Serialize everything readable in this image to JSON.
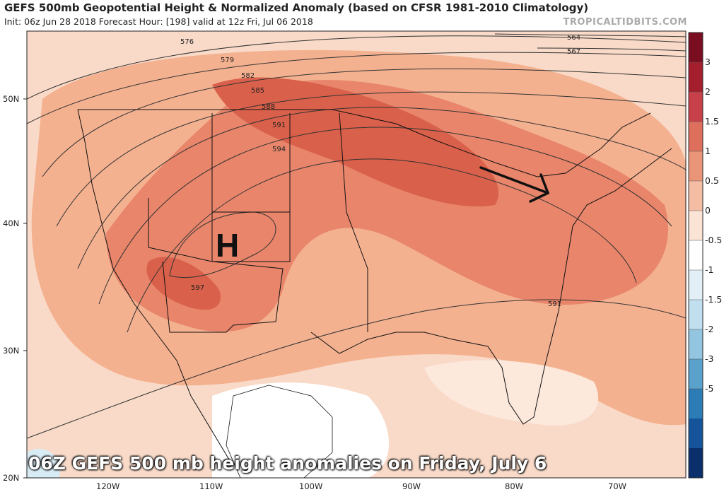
{
  "header": {
    "title": "GEFS 500mb Geopotential Height & Normalized Anomaly (based on CFSR 1981-2010 Climatology)",
    "subtitle": "Init: 06z Jun 28 2018   Forecast Hour: [198]   valid at 12z Fri, Jul 06 2018",
    "watermark": "TROPICALTIDBITS.COM"
  },
  "map": {
    "high_label": "H",
    "caption": "06Z GEFS 500 mb height anomalies on Friday, July 6",
    "lat_labels": [
      "50N",
      "40N",
      "30N",
      "20N"
    ],
    "lon_labels": [
      "120W",
      "110W",
      "100W",
      "90W",
      "80W",
      "70W"
    ],
    "contour_labels": [
      "576",
      "579",
      "582",
      "585",
      "588",
      "591",
      "594",
      "597",
      "591",
      "564",
      "567"
    ],
    "colors": {
      "anomaly_strong": "#d9604a",
      "anomaly_medium": "#e8856b",
      "anomaly_light": "#f4b190",
      "anomaly_faint": "#f9dac8",
      "anomaly_neutral": "#ffffff",
      "negative_light": "#d8ecf5",
      "coastline": "#111111",
      "contour": "#333333",
      "arrow": "#111111"
    }
  },
  "colorbar": {
    "ticks": [
      "3",
      "2",
      "1.5",
      "1",
      "0.5",
      "0",
      "-0.5",
      "-1",
      "-1.5",
      "-2",
      "-3",
      "-5"
    ],
    "colors": [
      "#7a0d20",
      "#a51e2d",
      "#c8414a",
      "#dd6f5c",
      "#ea9478",
      "#f5bea4",
      "#fbe3d6",
      "#ffffff",
      "#e2eff6",
      "#c1dfee",
      "#93c5e0",
      "#5aa2cc",
      "#2c7cb5",
      "#15549a",
      "#0a2f6b"
    ]
  }
}
